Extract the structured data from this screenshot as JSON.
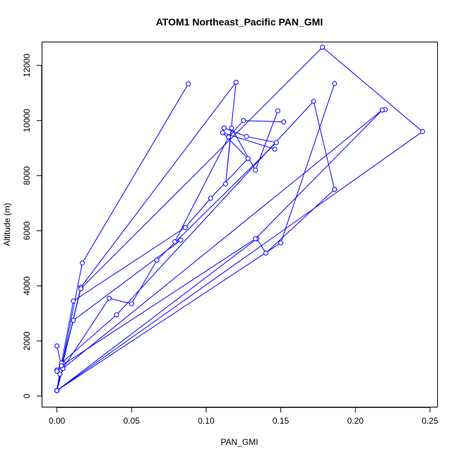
{
  "chart_data": {
    "type": "line",
    "title": "ATOM1 Northeast_Pacific PAN_GMI",
    "xlabel": "PAN_GMI",
    "ylabel": "Altitude (m)",
    "xlim": [
      -0.01,
      0.255
    ],
    "ylim": [
      -400,
      12850
    ],
    "xticks": [
      0.0,
      0.05,
      0.1,
      0.15,
      0.2,
      0.25
    ],
    "xtick_labels": [
      "0.00",
      "0.05",
      "0.10",
      "0.15",
      "0.20",
      "0.25"
    ],
    "yticks": [
      0,
      2000,
      4000,
      6000,
      8000,
      10000,
      12000
    ],
    "ytick_labels": [
      "0",
      "2000",
      "4000",
      "6000",
      "8000",
      "10000",
      "12000"
    ],
    "grid": false,
    "color": "#0000ff",
    "series": [
      {
        "x": [
          0.0,
          0.003,
          0.017,
          0.088
        ],
        "y": [
          200,
          1000,
          4830,
          11330
        ]
      },
      {
        "x": [
          0.0,
          0.004,
          0.016,
          0.12,
          0.113,
          0.117,
          0.133,
          0.148
        ],
        "y": [
          950,
          1200,
          3950,
          11390,
          7700,
          9730,
          8200,
          10350
        ]
      },
      {
        "x": [
          0.0,
          0.002,
          0.011,
          0.086,
          0.103,
          0.128,
          0.111,
          0.146
        ],
        "y": [
          200,
          900,
          3450,
          6120,
          7180,
          8620,
          9560,
          8960
        ]
      },
      {
        "x": [
          0.0,
          0.003,
          0.011,
          0.083,
          0.079,
          0.115,
          0.125,
          0.152
        ],
        "y": [
          1820,
          1100,
          2750,
          5660,
          5600,
          9400,
          10000,
          9950
        ]
      },
      {
        "x": [
          0.0,
          0.004,
          0.035,
          0.05,
          0.067,
          0.147,
          0.127,
          0.112
        ],
        "y": [
          900,
          1000,
          3550,
          3350,
          4930,
          9200,
          9420,
          9730
        ]
      },
      {
        "x": [
          0.0,
          0.003,
          0.04,
          0.172,
          0.186
        ],
        "y": [
          200,
          1200,
          2950,
          10700,
          7500
        ]
      },
      {
        "x": [
          0.0,
          0.002,
          0.016,
          0.178,
          0.245,
          0.0
        ],
        "y": [
          200,
          800,
          3900,
          12660,
          9600,
          200
        ]
      },
      {
        "x": [
          0.0,
          0.004,
          0.218,
          0.22
        ],
        "y": [
          200,
          1000,
          10380,
          10400
        ]
      },
      {
        "x": [
          0.0,
          0.15,
          0.186
        ],
        "y": [
          200,
          5560,
          11340
        ]
      },
      {
        "x": [
          0.0,
          0.134,
          0.14,
          0.186
        ],
        "y": [
          200,
          5710,
          5190,
          7500
        ]
      },
      {
        "x": [
          0.0,
          0.003,
          0.133,
          0.218
        ],
        "y": [
          200,
          1100,
          5710,
          10380
        ]
      }
    ]
  }
}
